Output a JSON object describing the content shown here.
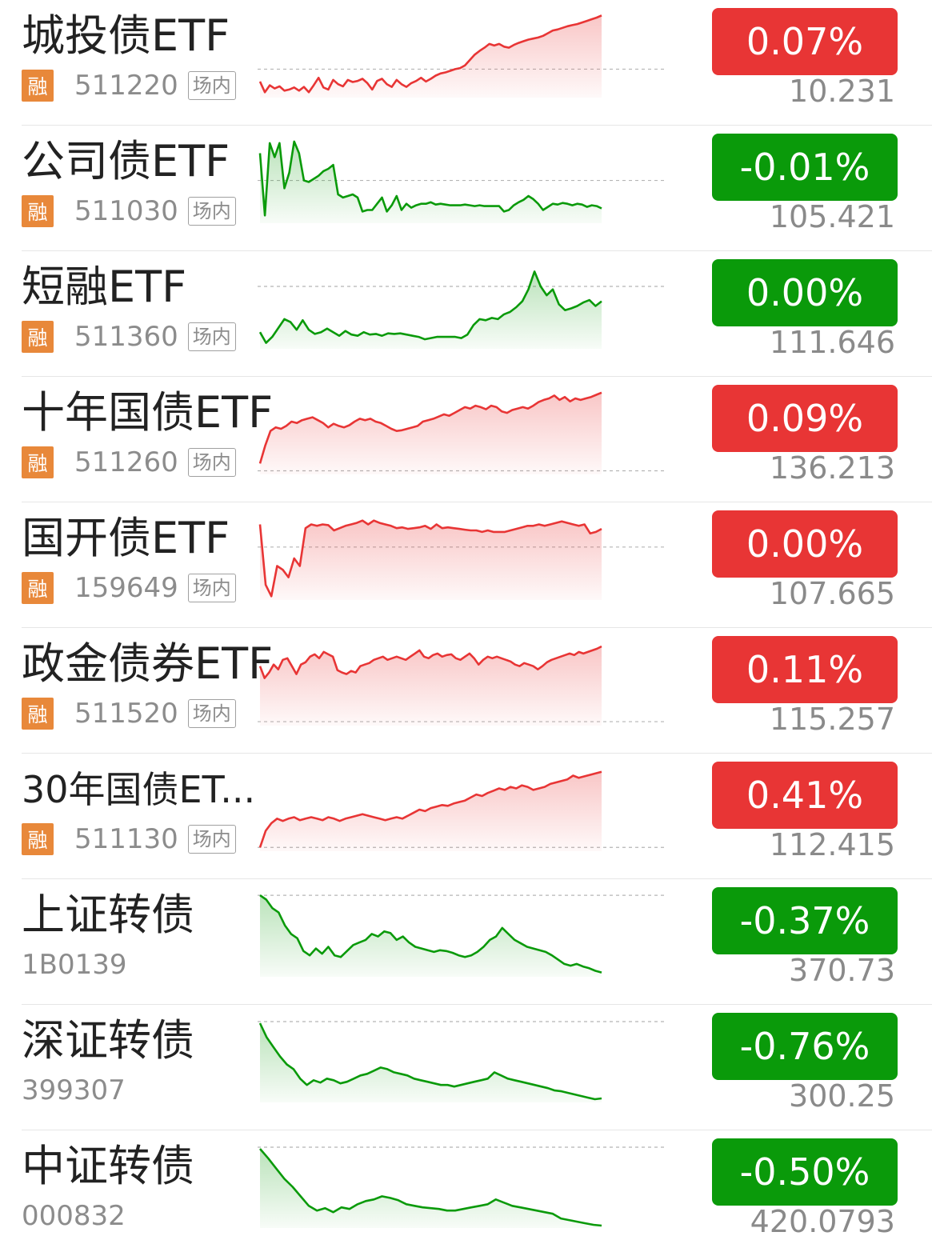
{
  "colors": {
    "up": "#e83535",
    "down": "#0a9a0a",
    "rong_badge": "#e8883a"
  },
  "rong_label": "融",
  "market_tag": "场内",
  "items": [
    {
      "name": "城投债ETF",
      "code": "511220",
      "margin": true,
      "tag": true,
      "change": "0.07%",
      "price": "10.231",
      "dir": "up",
      "series": [
        0.55,
        0.35,
        0.48,
        0.42,
        0.46,
        0.38,
        0.4,
        0.44,
        0.38,
        0.45,
        0.35,
        0.48,
        0.62,
        0.44,
        0.4,
        0.58,
        0.5,
        0.46,
        0.58,
        0.54,
        0.56,
        0.6,
        0.52,
        0.4,
        0.56,
        0.6,
        0.5,
        0.45,
        0.58,
        0.5,
        0.45,
        0.52,
        0.56,
        0.62,
        0.55,
        0.6,
        0.66,
        0.7,
        0.72,
        0.75,
        0.78,
        0.8,
        0.85,
        0.95,
        1.05,
        1.12,
        1.18,
        1.25,
        1.22,
        1.25,
        1.2,
        1.18,
        1.23,
        1.27,
        1.3,
        1.33,
        1.35,
        1.37,
        1.4,
        1.45,
        1.5,
        1.52,
        1.55,
        1.58,
        1.6,
        1.62,
        1.65,
        1.68,
        1.71,
        1.74,
        1.78
      ],
      "ref": 0.78,
      "ymin": 0.25,
      "ymax": 1.8
    },
    {
      "name": "公司债ETF",
      "code": "511030",
      "margin": true,
      "tag": true,
      "change": "-0.01%",
      "price": "105.421",
      "dir": "down",
      "series": [
        0.95,
        0.15,
        1.08,
        0.9,
        1.08,
        0.5,
        0.7,
        1.1,
        0.95,
        0.6,
        0.58,
        0.62,
        0.66,
        0.72,
        0.75,
        0.8,
        0.42,
        0.38,
        0.4,
        0.42,
        0.38,
        0.2,
        0.22,
        0.22,
        0.3,
        0.38,
        0.2,
        0.28,
        0.4,
        0.22,
        0.3,
        0.25,
        0.28,
        0.3,
        0.3,
        0.32,
        0.29,
        0.3,
        0.29,
        0.28,
        0.28,
        0.28,
        0.29,
        0.28,
        0.27,
        0.28,
        0.27,
        0.27,
        0.27,
        0.27,
        0.2,
        0.22,
        0.28,
        0.32,
        0.35,
        0.4,
        0.36,
        0.3,
        0.22,
        0.26,
        0.3,
        0.29,
        0.31,
        0.3,
        0.28,
        0.3,
        0.29,
        0.26,
        0.28,
        0.27,
        0.24
      ],
      "ref": 0.6,
      "ymin": 0.05,
      "ymax": 1.12
    },
    {
      "name": "短融ETF",
      "code": "511360",
      "margin": true,
      "tag": true,
      "change": "0.00%",
      "price": "111.646",
      "dir": "down",
      "series": [
        0.18,
        0.0,
        0.1,
        0.25,
        0.4,
        0.35,
        0.22,
        0.38,
        0.22,
        0.15,
        0.18,
        0.24,
        0.18,
        0.12,
        0.2,
        0.14,
        0.12,
        0.18,
        0.14,
        0.15,
        0.12,
        0.16,
        0.15,
        0.16,
        0.14,
        0.12,
        0.1,
        0.06,
        0.08,
        0.1,
        0.1,
        0.1,
        0.1,
        0.08,
        0.14,
        0.3,
        0.4,
        0.38,
        0.42,
        0.4,
        0.48,
        0.52,
        0.6,
        0.7,
        0.9,
        1.2,
        0.95,
        0.8,
        0.9,
        0.65,
        0.55,
        0.58,
        0.62,
        0.68,
        0.72,
        0.62,
        0.7
      ],
      "ref": 0.95,
      "ymin": -0.1,
      "ymax": 1.3
    },
    {
      "name": "十年国债ETF",
      "code": "511260",
      "margin": true,
      "tag": true,
      "change": "0.09%",
      "price": "136.213",
      "dir": "up",
      "series": [
        0.1,
        0.35,
        0.55,
        0.6,
        0.58,
        0.62,
        0.68,
        0.66,
        0.7,
        0.72,
        0.74,
        0.7,
        0.66,
        0.6,
        0.65,
        0.62,
        0.6,
        0.63,
        0.68,
        0.72,
        0.7,
        0.72,
        0.68,
        0.66,
        0.62,
        0.58,
        0.55,
        0.56,
        0.58,
        0.6,
        0.62,
        0.68,
        0.7,
        0.72,
        0.75,
        0.78,
        0.76,
        0.8,
        0.84,
        0.88,
        0.86,
        0.9,
        0.88,
        0.85,
        0.9,
        0.88,
        0.82,
        0.8,
        0.84,
        0.86,
        0.88,
        0.86,
        0.9,
        0.95,
        0.98,
        1.0,
        1.04,
        0.98,
        1.02,
        0.96,
        1.0,
        0.98,
        1.0,
        1.02,
        1.05,
        1.08
      ],
      "ref": 0.0,
      "ymin": -0.05,
      "ymax": 1.1
    },
    {
      "name": "国开债ETF",
      "code": "159649",
      "margin": true,
      "tag": true,
      "change": "0.00%",
      "price": "107.665",
      "dir": "up",
      "series": [
        1.0,
        0.2,
        0.05,
        0.45,
        0.4,
        0.3,
        0.55,
        0.45,
        0.95,
        1.0,
        0.98,
        1.0,
        0.99,
        0.92,
        0.95,
        0.98,
        1.0,
        1.02,
        1.05,
        1.0,
        1.05,
        1.02,
        1.0,
        0.98,
        0.95,
        0.96,
        0.94,
        0.95,
        0.96,
        0.98,
        0.94,
        1.0,
        0.95,
        0.96,
        0.95,
        0.94,
        0.93,
        0.92,
        0.92,
        0.9,
        0.92,
        0.9,
        0.9,
        0.9,
        0.92,
        0.94,
        0.96,
        0.98,
        0.98,
        1.0,
        0.98,
        1.0,
        1.02,
        1.04,
        1.02,
        1.0,
        0.98,
        1.0,
        0.88,
        0.9,
        0.94
      ],
      "ref": 0.7,
      "ymin": 0.0,
      "ymax": 1.1
    },
    {
      "name": "政金债券ETF",
      "code": "511520",
      "margin": true,
      "tag": true,
      "change": "0.11%",
      "price": "115.257",
      "dir": "up",
      "series": [
        0.7,
        0.55,
        0.62,
        0.72,
        0.66,
        0.78,
        0.8,
        0.7,
        0.6,
        0.72,
        0.75,
        0.82,
        0.85,
        0.8,
        0.88,
        0.85,
        0.82,
        0.65,
        0.62,
        0.6,
        0.64,
        0.62,
        0.7,
        0.72,
        0.74,
        0.78,
        0.8,
        0.82,
        0.78,
        0.8,
        0.82,
        0.8,
        0.78,
        0.82,
        0.86,
        0.9,
        0.82,
        0.8,
        0.84,
        0.86,
        0.82,
        0.84,
        0.85,
        0.8,
        0.78,
        0.82,
        0.86,
        0.8,
        0.72,
        0.78,
        0.82,
        0.8,
        0.82,
        0.8,
        0.78,
        0.76,
        0.72,
        0.7,
        0.74,
        0.72,
        0.7,
        0.66,
        0.7,
        0.75,
        0.78,
        0.8,
        0.82,
        0.84,
        0.86,
        0.84,
        0.88,
        0.86,
        0.88,
        0.9,
        0.92,
        0.95
      ],
      "ref": 0.0,
      "ymin": -0.05,
      "ymax": 1.0
    },
    {
      "name": "30年国债ET...",
      "code": "511130",
      "margin": true,
      "tag": true,
      "change": "0.41%",
      "price": "112.415",
      "dir": "up",
      "series": [
        0.0,
        0.22,
        0.32,
        0.38,
        0.35,
        0.38,
        0.4,
        0.36,
        0.38,
        0.4,
        0.38,
        0.36,
        0.4,
        0.38,
        0.35,
        0.38,
        0.4,
        0.42,
        0.44,
        0.42,
        0.4,
        0.38,
        0.36,
        0.38,
        0.4,
        0.38,
        0.42,
        0.46,
        0.5,
        0.48,
        0.52,
        0.54,
        0.56,
        0.55,
        0.58,
        0.6,
        0.62,
        0.66,
        0.7,
        0.68,
        0.72,
        0.75,
        0.78,
        0.76,
        0.8,
        0.78,
        0.82,
        0.8,
        0.76,
        0.78,
        0.8,
        0.84,
        0.86,
        0.88,
        0.9,
        0.95,
        0.92,
        0.94,
        0.96,
        0.98,
        1.0
      ],
      "ref": 0.0,
      "ymin": -0.05,
      "ymax": 1.05
    },
    {
      "name": "上证转债",
      "code": "1B0139",
      "margin": false,
      "tag": false,
      "change": "-0.37%",
      "price": "370.73",
      "dir": "down",
      "series": [
        1.0,
        0.95,
        0.85,
        0.8,
        0.65,
        0.55,
        0.5,
        0.35,
        0.3,
        0.38,
        0.32,
        0.4,
        0.3,
        0.28,
        0.35,
        0.42,
        0.45,
        0.48,
        0.55,
        0.52,
        0.58,
        0.56,
        0.48,
        0.52,
        0.45,
        0.4,
        0.38,
        0.36,
        0.34,
        0.36,
        0.35,
        0.33,
        0.3,
        0.28,
        0.3,
        0.34,
        0.4,
        0.48,
        0.52,
        0.62,
        0.55,
        0.48,
        0.44,
        0.4,
        0.38,
        0.36,
        0.34,
        0.3,
        0.25,
        0.2,
        0.18,
        0.2,
        0.17,
        0.15,
        0.12,
        0.1
      ],
      "ref": 1.0,
      "ymin": 0.05,
      "ymax": 1.02
    },
    {
      "name": "深证转债",
      "code": "399307",
      "margin": false,
      "tag": false,
      "change": "-0.76%",
      "price": "300.25",
      "dir": "down",
      "series": [
        1.0,
        0.82,
        0.7,
        0.58,
        0.48,
        0.42,
        0.3,
        0.22,
        0.28,
        0.25,
        0.3,
        0.28,
        0.24,
        0.26,
        0.3,
        0.34,
        0.36,
        0.4,
        0.44,
        0.42,
        0.38,
        0.36,
        0.34,
        0.3,
        0.28,
        0.26,
        0.24,
        0.22,
        0.22,
        0.2,
        0.22,
        0.24,
        0.26,
        0.28,
        0.3,
        0.38,
        0.34,
        0.3,
        0.28,
        0.26,
        0.24,
        0.22,
        0.2,
        0.18,
        0.15,
        0.14,
        0.12,
        0.1,
        0.08,
        0.06,
        0.04,
        0.05
      ],
      "ref": 1.02,
      "ymin": 0.0,
      "ymax": 1.05
    },
    {
      "name": "中证转债",
      "code": "000832",
      "margin": false,
      "tag": false,
      "change": "-0.50%",
      "price": "420.0793",
      "dir": "down",
      "series": [
        1.0,
        0.88,
        0.75,
        0.62,
        0.52,
        0.4,
        0.28,
        0.22,
        0.25,
        0.2,
        0.26,
        0.24,
        0.3,
        0.34,
        0.36,
        0.4,
        0.38,
        0.35,
        0.3,
        0.28,
        0.26,
        0.25,
        0.24,
        0.22,
        0.22,
        0.24,
        0.26,
        0.28,
        0.3,
        0.36,
        0.32,
        0.28,
        0.26,
        0.24,
        0.22,
        0.2,
        0.18,
        0.12,
        0.1,
        0.08,
        0.06,
        0.04,
        0.03
      ],
      "ref": 1.02,
      "ymin": 0.0,
      "ymax": 1.05
    }
  ]
}
